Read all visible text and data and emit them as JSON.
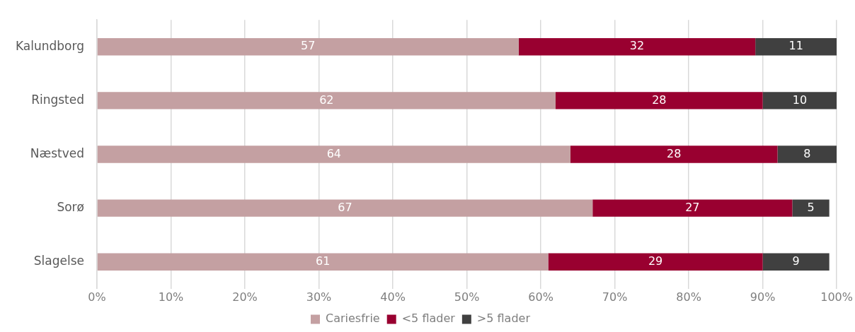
{
  "chart_data": {
    "type": "bar",
    "orientation": "horizontal",
    "stacked": true,
    "data_labels": true,
    "grid": "x",
    "legend": "bottom",
    "categories": [
      "Kalundborg",
      "Ringsted",
      "Næstved",
      "Sorø",
      "Slagelse"
    ],
    "series": [
      {
        "name": "Cariesfrie",
        "color": "#c4a0a2",
        "values": [
          57,
          62,
          64,
          67,
          61
        ]
      },
      {
        "name": "<5 flader",
        "color": "#990030",
        "values": [
          32,
          28,
          28,
          27,
          29
        ]
      },
      {
        "name": ">5 flader",
        "color": "#404040",
        "values": [
          11,
          10,
          8,
          5,
          9
        ]
      }
    ],
    "xlim": [
      0,
      100
    ],
    "xticks": [
      {
        "value": 0,
        "label": "0%"
      },
      {
        "value": 10,
        "label": "10%"
      },
      {
        "value": 20,
        "label": "20%"
      },
      {
        "value": 30,
        "label": "30%"
      },
      {
        "value": 40,
        "label": "40%"
      },
      {
        "value": 50,
        "label": "50%"
      },
      {
        "value": 60,
        "label": "60%"
      },
      {
        "value": 70,
        "label": "70%"
      },
      {
        "value": 80,
        "label": "80%"
      },
      {
        "value": 90,
        "label": "90%"
      },
      {
        "value": 100,
        "label": "100%"
      }
    ]
  }
}
